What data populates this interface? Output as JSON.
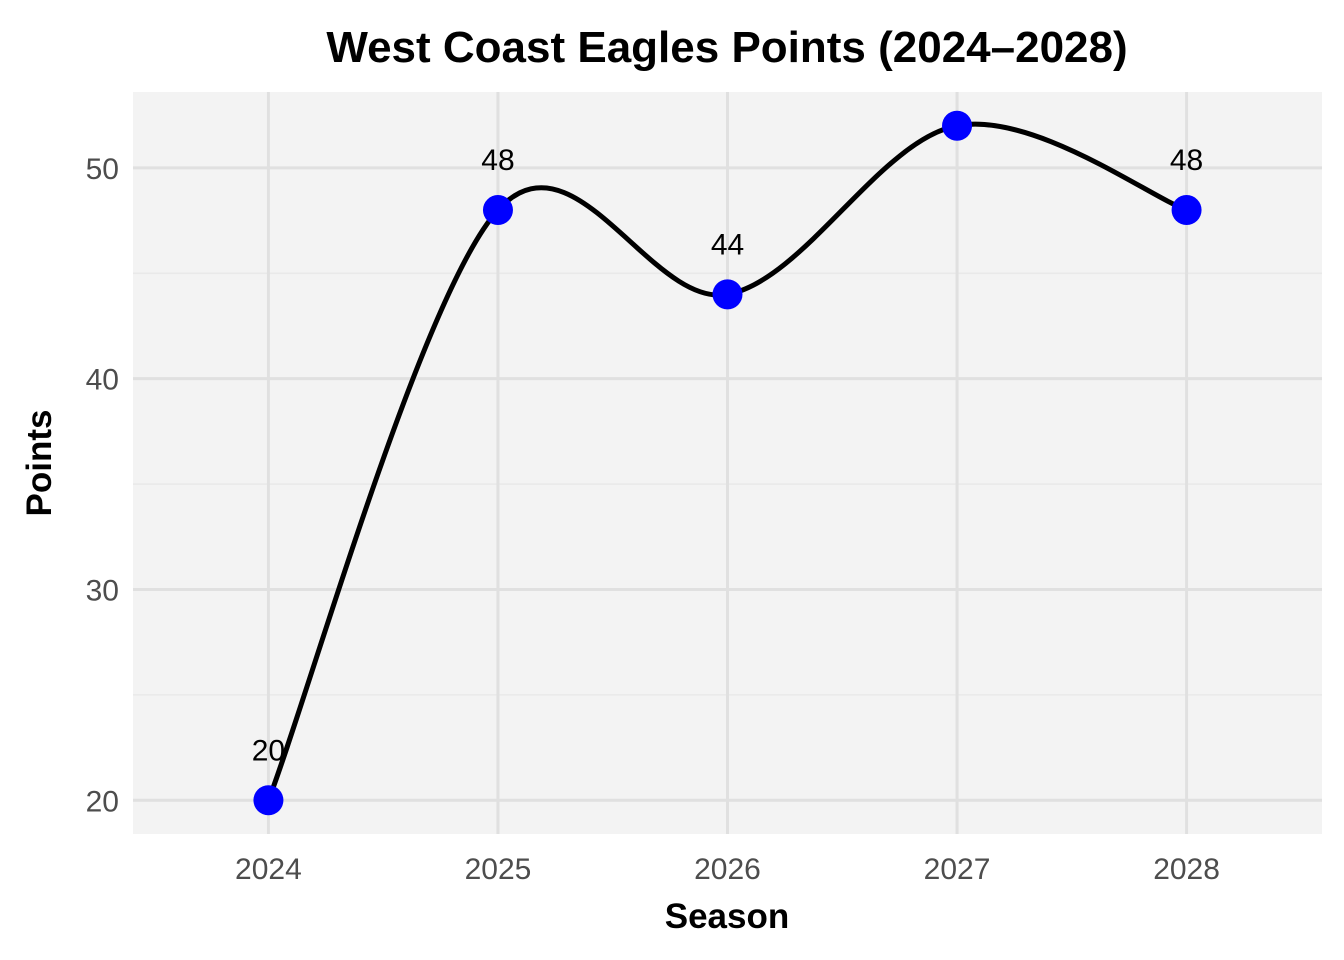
{
  "chart_data": {
    "type": "line",
    "title": "West Coast Eagles Points (2024–2028)",
    "xlabel": "Season",
    "ylabel": "Points",
    "x": [
      2024,
      2025,
      2026,
      2027,
      2028
    ],
    "x_tick_labels": [
      "2024",
      "2025",
      "2026",
      "2027",
      "2028"
    ],
    "y_ticks": [
      20,
      30,
      40,
      50
    ],
    "y_tick_labels": [
      "20",
      "30",
      "40",
      "50"
    ],
    "ylim": [
      18.4,
      53.6
    ],
    "xlim": [
      2023.41,
      2028.59
    ],
    "series": [
      {
        "values": [
          20,
          48,
          44,
          52,
          48
        ],
        "data_labels": [
          "20",
          "48",
          "44",
          "",
          "48"
        ]
      }
    ],
    "smoothed": true,
    "grid": true,
    "legend": "none",
    "colors": {
      "panel_background": "#f3f3f3",
      "grid_major": "#e0e0e0",
      "grid_minor": "#e9e9e9",
      "line": "#000000",
      "points": "#0000ff"
    }
  }
}
